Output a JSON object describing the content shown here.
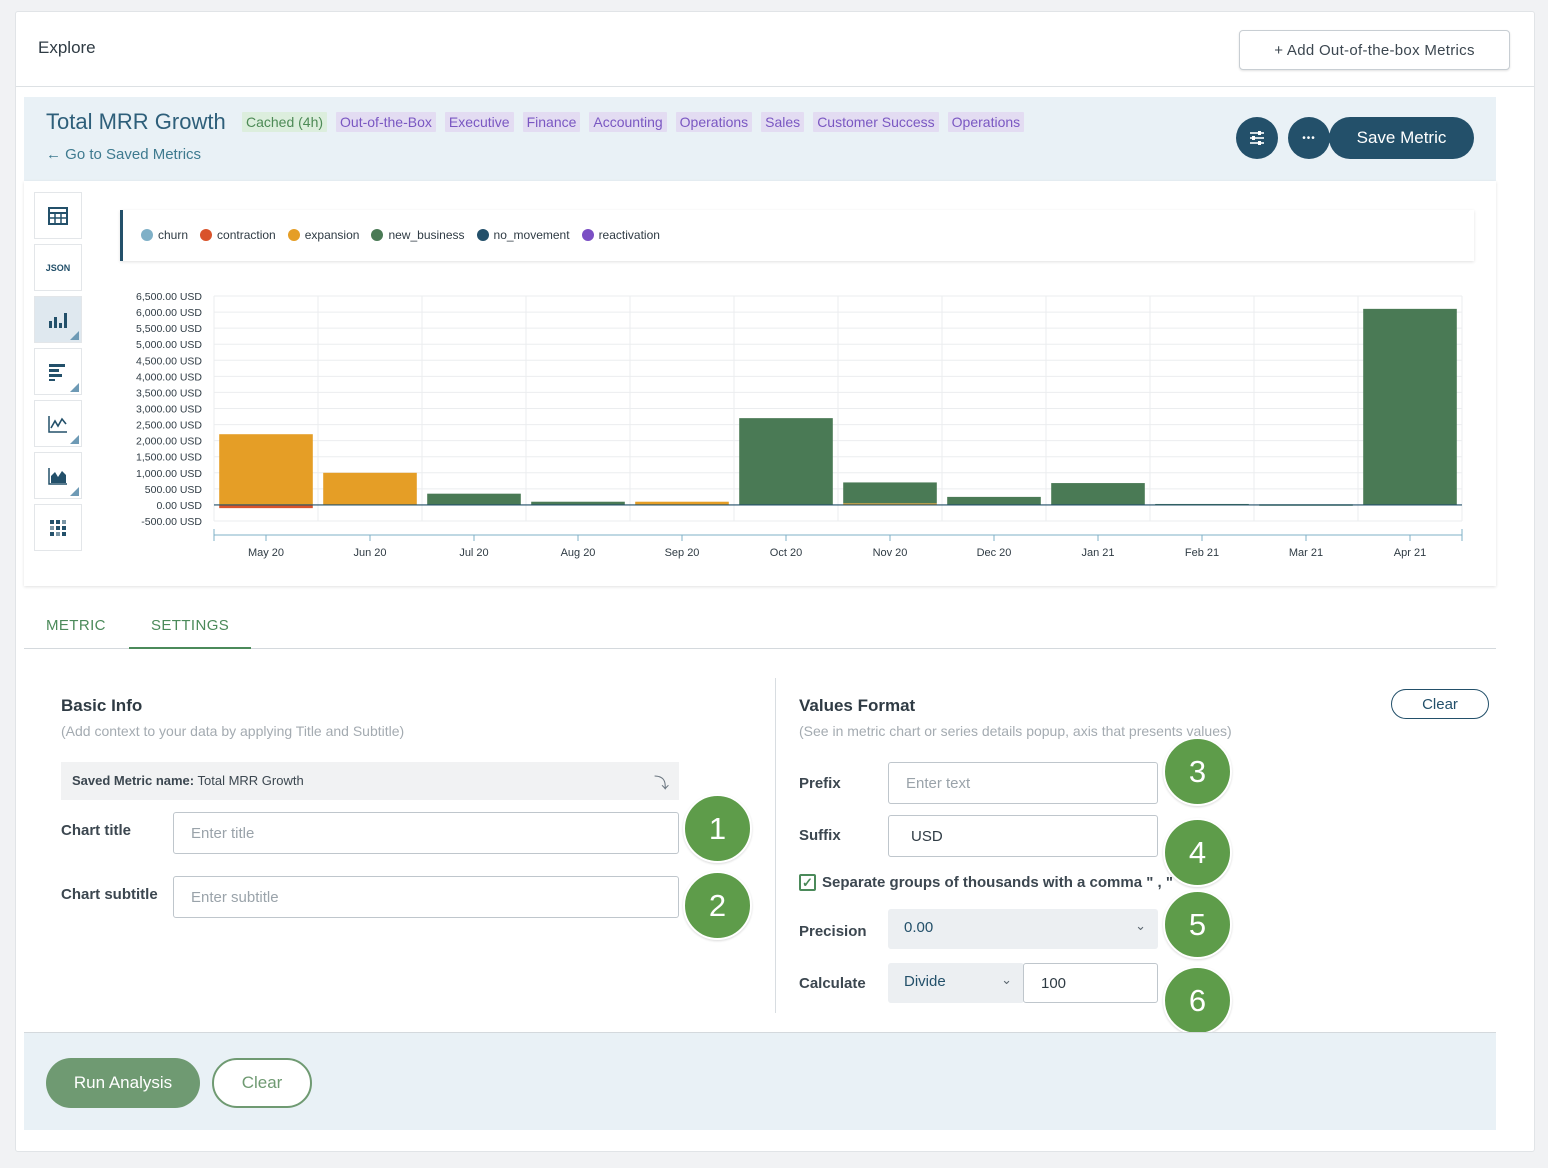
{
  "header": {
    "title": "Explore",
    "add_oob_label": "+ Add Out-of-the-box Metrics"
  },
  "metric": {
    "title": "Total MRR Growth",
    "tags": [
      "Cached (4h)",
      "Out-of-the-Box",
      "Executive",
      "Finance",
      "Accounting",
      "Operations",
      "Sales",
      "Customer Success",
      "Operations"
    ],
    "back_link": "← Go to Saved Metrics",
    "save_label": "Save Metric",
    "more_glyph": "•••"
  },
  "viz_icons": [
    {
      "name": "table-icon",
      "label": ""
    },
    {
      "name": "json-icon",
      "label": "JSON"
    },
    {
      "name": "bar-chart-icon",
      "label": ""
    },
    {
      "name": "horizontal-bar-icon",
      "label": ""
    },
    {
      "name": "line-chart-icon",
      "label": ""
    },
    {
      "name": "area-chart-icon",
      "label": ""
    },
    {
      "name": "heatmap-icon",
      "label": ""
    }
  ],
  "chart_data": {
    "type": "bar",
    "categories": [
      "May 20",
      "Jun 20",
      "Jul 20",
      "Aug 20",
      "Sep 20",
      "Oct 20",
      "Nov 20",
      "Dec 20",
      "Jan 21",
      "Feb 21",
      "Mar 21",
      "Apr 21"
    ],
    "series": [
      {
        "name": "churn",
        "color": "#7fb0c7",
        "values": [
          0,
          0,
          0,
          0,
          0,
          0,
          0,
          0,
          0,
          0,
          0,
          0
        ]
      },
      {
        "name": "contraction",
        "color": "#d9532b",
        "values": [
          -100,
          0,
          0,
          0,
          0,
          0,
          0,
          0,
          0,
          0,
          0,
          0
        ]
      },
      {
        "name": "expansion",
        "color": "#e59e26",
        "values": [
          2200,
          1000,
          0,
          0,
          100,
          0,
          50,
          0,
          0,
          0,
          0,
          0
        ]
      },
      {
        "name": "new_business",
        "color": "#4a7a55",
        "values": [
          0,
          0,
          350,
          100,
          0,
          2700,
          650,
          250,
          680,
          30,
          20,
          6100
        ]
      },
      {
        "name": "no_movement",
        "color": "#23506a",
        "values": [
          0,
          0,
          0,
          0,
          0,
          0,
          0,
          0,
          0,
          0,
          0,
          0
        ]
      },
      {
        "name": "reactivation",
        "color": "#7b4fc4",
        "values": [
          0,
          0,
          0,
          0,
          0,
          0,
          0,
          0,
          0,
          0,
          0,
          0
        ]
      }
    ],
    "yticks": [
      "6,500.00 USD",
      "6,000.00 USD",
      "5,500.00 USD",
      "5,000.00 USD",
      "4,500.00 USD",
      "4,000.00 USD",
      "3,500.00 USD",
      "3,000.00 USD",
      "2,500.00 USD",
      "2,000.00 USD",
      "1,500.00 USD",
      "1,000.00 USD",
      "500.00 USD",
      "0.00 USD",
      "-500.00 USD"
    ],
    "ylim": [
      -500,
      6500
    ],
    "grid": true,
    "legend_position": "top-left"
  },
  "tabs": [
    "METRIC",
    "SETTINGS"
  ],
  "basic_info": {
    "title": "Basic Info",
    "subtitle": "(Add context to your data by applying Title and Subtitle)",
    "saved_name_label": "Saved Metric name:",
    "saved_name_value": "Total MRR Growth",
    "chart_title_label": "Chart title",
    "chart_title_placeholder": "Enter title",
    "chart_subtitle_label": "Chart subtitle",
    "chart_subtitle_placeholder": "Enter subtitle"
  },
  "values_format": {
    "title": "Values Format",
    "subtitle": "(See in metric chart or series details popup, axis that presents values)",
    "clear_label": "Clear",
    "prefix_label": "Prefix",
    "prefix_placeholder": "Enter text",
    "suffix_label": "Suffix",
    "suffix_value": "USD",
    "separator_label": "Separate groups of thousands with a comma \" , \"",
    "separator_checked": true,
    "precision_label": "Precision",
    "precision_value": "0.00",
    "calculate_label": "Calculate",
    "calculate_op": "Divide",
    "calculate_value": "100"
  },
  "badges": [
    "1",
    "2",
    "3",
    "4",
    "5",
    "6"
  ],
  "footer": {
    "run_label": "Run Analysis",
    "clear_label": "Clear"
  }
}
